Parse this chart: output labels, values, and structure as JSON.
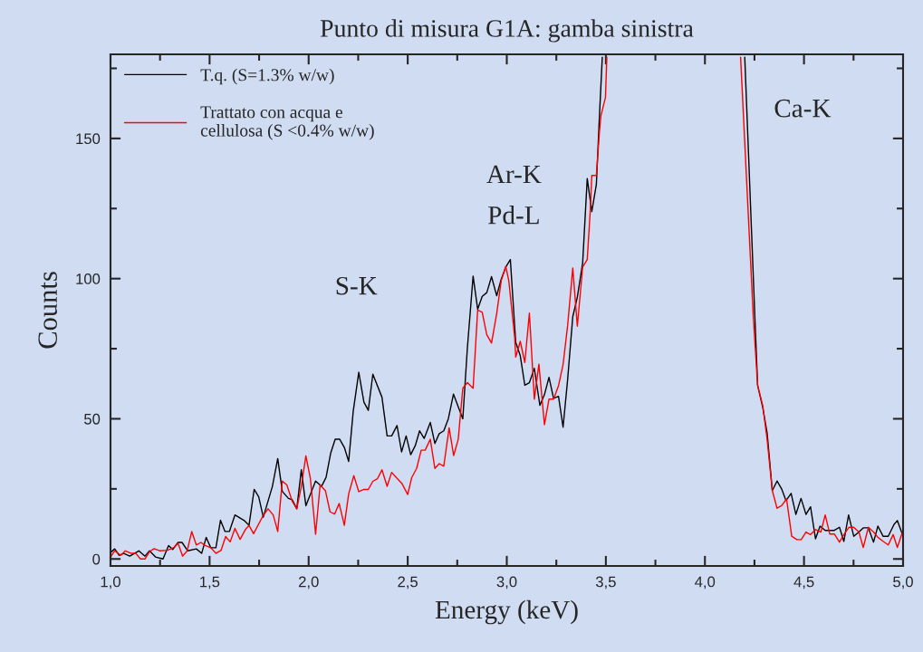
{
  "chart_data": {
    "type": "line",
    "title": "Punto di misura G1A: gamba sinistra",
    "xlabel": "Energy (keV)",
    "ylabel": "Counts",
    "xlim": [
      1.0,
      5.0
    ],
    "ylim": [
      -2.5,
      180
    ],
    "xticks": [
      {
        "value": 1.0,
        "label": "1,0"
      },
      {
        "value": 1.25,
        "label": null
      },
      {
        "value": 1.5,
        "label": "1,5"
      },
      {
        "value": 1.75,
        "label": null
      },
      {
        "value": 2.0,
        "label": "2,0"
      },
      {
        "value": 2.25,
        "label": null
      },
      {
        "value": 2.5,
        "label": "2,5"
      },
      {
        "value": 2.75,
        "label": null
      },
      {
        "value": 3.0,
        "label": "3,0"
      },
      {
        "value": 3.25,
        "label": null
      },
      {
        "value": 3.5,
        "label": "3,5"
      },
      {
        "value": 3.75,
        "label": null
      },
      {
        "value": 4.0,
        "label": "4,0"
      },
      {
        "value": 4.25,
        "label": null
      },
      {
        "value": 4.5,
        "label": "4,5"
      },
      {
        "value": 4.75,
        "label": null
      },
      {
        "value": 5.0,
        "label": "5,0"
      }
    ],
    "yticks": [
      0,
      {
        "value": 25,
        "label": null
      },
      50,
      {
        "value": 75,
        "label": null
      },
      100,
      {
        "value": 125,
        "label": null
      },
      150,
      {
        "value": 175,
        "label": null
      }
    ],
    "grid": false,
    "legend": "top left",
    "marker": "none",
    "line_style": "solid",
    "annotations": [
      "S-K",
      "Ar-K",
      "Pd-L",
      "Ca-K"
    ],
    "series": [
      {
        "name": "T.q. (S=1.3% w/w)",
        "color": "#000000",
        "x": [
          1.0,
          1.021,
          1.044,
          1.067,
          1.097,
          1.143,
          1.174,
          1.197,
          1.227,
          1.265,
          1.293,
          1.314,
          1.341,
          1.361,
          1.39,
          1.433,
          1.46,
          1.483,
          1.506,
          1.532,
          1.555,
          1.578,
          1.6,
          1.628,
          1.677,
          1.699,
          1.725,
          1.748,
          1.771,
          1.817,
          1.844,
          1.867,
          1.898,
          1.917,
          1.94,
          1.963,
          1.986,
          2.035,
          2.065,
          2.088,
          2.111,
          2.134,
          2.157,
          2.18,
          2.202,
          2.225,
          2.253,
          2.279,
          2.301,
          2.324,
          2.37,
          2.396,
          2.419,
          2.446,
          2.469,
          2.492,
          2.515,
          2.538,
          2.56,
          2.583,
          2.614,
          2.637,
          2.659,
          2.682,
          2.705,
          2.731,
          2.755,
          2.778,
          2.801,
          2.83,
          2.853,
          2.876,
          2.899,
          2.923,
          2.949,
          2.972,
          2.995,
          3.018,
          3.045,
          3.068,
          3.091,
          3.114,
          3.139,
          3.167,
          3.19,
          3.213,
          3.236,
          3.261,
          3.284,
          3.307,
          3.333,
          3.356,
          3.383,
          3.406,
          3.429,
          3.452,
          3.467,
          3.482,
          3.8,
          4.201,
          4.252,
          4.266,
          4.292,
          4.314,
          4.34,
          4.364,
          4.387,
          4.409,
          4.435,
          4.459,
          4.485,
          4.51,
          4.533,
          4.558,
          4.581,
          4.607,
          4.653,
          4.679,
          4.701,
          4.725,
          4.751,
          4.777,
          4.799,
          4.825,
          4.851,
          4.873,
          4.899,
          4.925,
          4.954,
          4.971,
          4.997
        ],
        "values": [
          2.3,
          3.6,
          1.3,
          2.0,
          1.0,
          2.9,
          1.0,
          2.9,
          0.7,
          0,
          4.8,
          3.4,
          5.9,
          5.9,
          2.9,
          3.6,
          2.0,
          7.7,
          4.0,
          4.0,
          13.8,
          9.8,
          9.8,
          15.7,
          13.6,
          12.0,
          24.8,
          22.2,
          14.9,
          25.9,
          35.8,
          24.1,
          21.6,
          21.1,
          17.9,
          31.8,
          19.0,
          27.8,
          25.9,
          29.1,
          37.7,
          42.7,
          42.7,
          39.8,
          34.8,
          52.7,
          66.6,
          55.9,
          53.0,
          65.9,
          57.7,
          43.9,
          43.9,
          47.6,
          38.2,
          43.9,
          37.2,
          40.4,
          45.7,
          43.0,
          48.7,
          41.2,
          44.7,
          45.7,
          50.0,
          58.8,
          54.3,
          50.0,
          75.2,
          100.9,
          89.1,
          93.7,
          95.0,
          100.7,
          93.9,
          99.8,
          104.1,
          106.8,
          77.3,
          72.5,
          62.0,
          62.9,
          68.0,
          54.8,
          58.6,
          64.8,
          57.3,
          58.0,
          47.0,
          63.9,
          86.4,
          93.4,
          105.7,
          135.7,
          123.9,
          133.5,
          157.1,
          179,
          null,
          179,
          86.4,
          61.9,
          54.0,
          44.9,
          24.4,
          27.8,
          25.0,
          20.8,
          23.4,
          15.9,
          21.6,
          15.9,
          18.6,
          7.2,
          11.7,
          10.2,
          10.2,
          11.3,
          6.3,
          15.7,
          8.1,
          9.6,
          11.1,
          11.1,
          6.0,
          11.7,
          8.1,
          8.1,
          12.3,
          13.7,
          8.7
        ]
      },
      {
        "name": "Trattato con acqua e\ncellulosa (S <0.4% w/w)",
        "color": "#ff0000",
        "x": [
          1.0,
          1.021,
          1.052,
          1.075,
          1.105,
          1.128,
          1.151,
          1.174,
          1.197,
          1.22,
          1.25,
          1.288,
          1.318,
          1.341,
          1.364,
          1.387,
          1.41,
          1.433,
          1.456,
          1.478,
          1.506,
          1.532,
          1.558,
          1.581,
          1.604,
          1.628,
          1.654,
          1.68,
          1.699,
          1.722,
          1.768,
          1.795,
          1.821,
          1.844,
          1.867,
          1.89,
          1.917,
          1.94,
          1.963,
          1.986,
          2.009,
          2.035,
          2.058,
          2.085,
          2.108,
          2.131,
          2.154,
          2.18,
          2.202,
          2.228,
          2.253,
          2.279,
          2.301,
          2.324,
          2.347,
          2.37,
          2.396,
          2.419,
          2.442,
          2.47,
          2.5,
          2.52,
          2.545,
          2.568,
          2.588,
          2.614,
          2.637,
          2.659,
          2.682,
          2.709,
          2.732,
          2.755,
          2.778,
          2.801,
          2.83,
          2.853,
          2.876,
          2.899,
          2.923,
          2.949,
          2.972,
          2.995,
          3.01,
          3.04,
          3.045,
          3.068,
          3.091,
          3.114,
          3.139,
          3.162,
          3.19,
          3.213,
          3.236,
          3.261,
          3.284,
          3.307,
          3.333,
          3.356,
          3.383,
          3.406,
          3.421,
          3.429,
          3.452,
          3.467,
          3.475,
          3.498,
          3.505,
          3.8,
          4.18,
          4.244,
          4.266,
          4.292,
          4.314,
          4.34,
          4.364,
          4.387,
          4.412,
          4.438,
          4.464,
          4.486,
          4.51,
          4.533,
          4.558,
          4.585,
          4.607,
          4.63,
          4.653,
          4.679,
          4.701,
          4.727,
          4.751,
          4.777,
          4.799,
          4.825,
          4.851,
          4.873,
          4.899,
          4.925,
          4.95,
          4.971,
          4.997
        ],
        "values": [
          0.7,
          2.9,
          1.3,
          2.9,
          2.0,
          2.0,
          0,
          0,
          2.6,
          3.7,
          2.9,
          3.1,
          4.0,
          5.6,
          1.0,
          2.9,
          9.8,
          5.0,
          5.9,
          4.8,
          4.0,
          2.0,
          3.1,
          8.0,
          6.1,
          10.9,
          7.0,
          10.4,
          12.0,
          9.0,
          15.2,
          17.9,
          15.7,
          9.8,
          27.8,
          26.4,
          20.6,
          17.9,
          25.9,
          36.8,
          28.6,
          8.8,
          26.4,
          24.3,
          16.8,
          16.0,
          19.8,
          12.0,
          23.2,
          29.7,
          24.0,
          24.8,
          24.8,
          27.7,
          28.6,
          31.8,
          25.9,
          30.9,
          29.1,
          27,
          23,
          29,
          32.3,
          38.8,
          38.8,
          42.7,
          32.3,
          34.0,
          33.1,
          46.8,
          36.9,
          42.7,
          60.9,
          62.9,
          60.9,
          88.8,
          88.0,
          80.0,
          77.0,
          87.5,
          99.3,
          104.4,
          99.3,
          78.9,
          72.0,
          77.6,
          70.1,
          87.7,
          57.0,
          69.5,
          47.9,
          57.0,
          57.0,
          61.8,
          69.3,
          83.2,
          103.8,
          83.0,
          104.1,
          106.8,
          123.9,
          136.8,
          136.8,
          151.7,
          158.1,
          164.6,
          179,
          null,
          179,
          86.4,
          61.9,
          54.6,
          42.5,
          24.4,
          18.1,
          19.0,
          21.4,
          8.1,
          6.9,
          6.9,
          9.6,
          8.7,
          10.5,
          9.6,
          15.7,
          8.9,
          8.9,
          6.0,
          8.7,
          11.3,
          11.3,
          9.6,
          4.1,
          11.3,
          9.6,
          7.7,
          6.3,
          5.0,
          8.7,
          4.1,
          9.6
        ]
      }
    ]
  }
}
